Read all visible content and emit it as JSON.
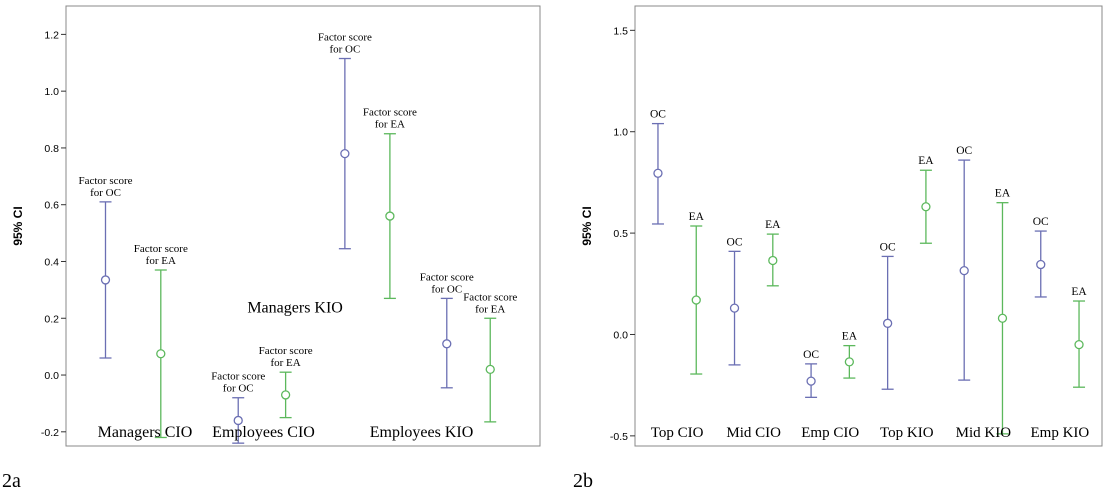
{
  "panel_labels": {
    "a": "2a",
    "b": "2b"
  },
  "chart_data": [
    {
      "type": "errorbar",
      "panel": "2a",
      "ylabel": "95% CI",
      "ylim": [
        -0.25,
        1.3
      ],
      "yticks": [
        -0.2,
        0.0,
        0.2,
        0.4,
        0.6,
        0.8,
        1.0,
        1.2
      ],
      "ytick_labels": [
        "-0.2",
        "0.0",
        "0.2",
        "0.4",
        "0.6",
        "0.8",
        "1.0",
        "1.2"
      ],
      "xmax": 6,
      "colors": {
        "OC": "#6b6fb3",
        "EA": "#5cb85c"
      },
      "groups": [
        {
          "label": "Managers CIO",
          "label_x": 1.5
        },
        {
          "label": "Employees CIO",
          "label_x": 3.0
        },
        {
          "label": "Managers KIO",
          "label_x": 3.4,
          "label_y": 0.22
        },
        {
          "label": "Employees KIO",
          "label_x": 5.0
        }
      ],
      "points": [
        {
          "series": "OC",
          "x": 1,
          "mean": 0.335,
          "low": 0.06,
          "high": 0.61,
          "annot": [
            "Factor score",
            "for OC"
          ]
        },
        {
          "series": "EA",
          "x": 1.7,
          "mean": 0.075,
          "low": -0.22,
          "high": 0.37,
          "annot": [
            "Factor score",
            "for EA"
          ]
        },
        {
          "series": "OC",
          "x": 2.68,
          "mean": -0.16,
          "low": -0.24,
          "high": -0.08,
          "annot": [
            "Factor score",
            "for OC"
          ]
        },
        {
          "series": "EA",
          "x": 3.28,
          "mean": -0.07,
          "low": -0.15,
          "high": 0.01,
          "annot": [
            "Factor score",
            "for EA"
          ]
        },
        {
          "series": "OC",
          "x": 4.03,
          "mean": 0.78,
          "low": 0.445,
          "high": 1.115,
          "annot": [
            "Factor score",
            "for OC"
          ]
        },
        {
          "series": "EA",
          "x": 4.6,
          "mean": 0.56,
          "low": 0.27,
          "high": 0.85,
          "annot": [
            "Factor score",
            "for EA"
          ]
        },
        {
          "series": "OC",
          "x": 5.32,
          "mean": 0.11,
          "low": -0.045,
          "high": 0.27,
          "annot": [
            "Factor score",
            "for OC"
          ]
        },
        {
          "series": "EA",
          "x": 5.87,
          "mean": 0.02,
          "low": -0.165,
          "high": 0.2,
          "annot": [
            "Factor score",
            "for EA"
          ]
        }
      ]
    },
    {
      "type": "errorbar",
      "panel": "2b",
      "ylabel": "95% CI",
      "ylim": [
        -0.55,
        1.62
      ],
      "yticks": [
        -0.5,
        0.0,
        0.5,
        1.0,
        1.5
      ],
      "ytick_labels": [
        "-0.5",
        "0.0",
        "0.5",
        "1.0",
        "1.5"
      ],
      "xmax": 12,
      "colors": {
        "OC": "#6b6fb3",
        "EA": "#5cb85c"
      },
      "groups": [
        {
          "label": "Top CIO",
          "label_x": 1.5
        },
        {
          "label": "Mid CIO",
          "label_x": 3.5
        },
        {
          "label": "Emp CIO",
          "label_x": 5.5
        },
        {
          "label": "Top KIO",
          "label_x": 7.5
        },
        {
          "label": "Mid KIO",
          "label_x": 9.5
        },
        {
          "label": "Emp KIO",
          "label_x": 11.5
        }
      ],
      "points": [
        {
          "series": "OC",
          "x": 1,
          "mean": 0.795,
          "low": 0.545,
          "high": 1.04,
          "annot": [
            "OC"
          ]
        },
        {
          "series": "EA",
          "x": 2,
          "mean": 0.17,
          "low": -0.195,
          "high": 0.535,
          "annot": [
            "EA"
          ]
        },
        {
          "series": "OC",
          "x": 3,
          "mean": 0.13,
          "low": -0.15,
          "high": 0.41,
          "annot": [
            "OC"
          ]
        },
        {
          "series": "EA",
          "x": 4,
          "mean": 0.365,
          "low": 0.24,
          "high": 0.495,
          "annot": [
            "EA"
          ]
        },
        {
          "series": "OC",
          "x": 5,
          "mean": -0.23,
          "low": -0.31,
          "high": -0.145,
          "annot": [
            "OC"
          ]
        },
        {
          "series": "EA",
          "x": 6,
          "mean": -0.135,
          "low": -0.215,
          "high": -0.055,
          "annot": [
            "EA"
          ]
        },
        {
          "series": "OC",
          "x": 7,
          "mean": 0.055,
          "low": -0.27,
          "high": 0.385,
          "annot": [
            "OC"
          ]
        },
        {
          "series": "EA",
          "x": 8,
          "mean": 0.63,
          "low": 0.45,
          "high": 0.81,
          "annot": [
            "EA"
          ]
        },
        {
          "series": "OC",
          "x": 9,
          "mean": 0.315,
          "low": -0.225,
          "high": 0.86,
          "annot": [
            "OC"
          ]
        },
        {
          "series": "EA",
          "x": 10,
          "mean": 0.08,
          "low": -0.49,
          "high": 0.65,
          "annot": [
            "EA"
          ]
        },
        {
          "series": "OC",
          "x": 11,
          "mean": 0.345,
          "low": 0.185,
          "high": 0.51,
          "annot": [
            "OC"
          ]
        },
        {
          "series": "EA",
          "x": 12,
          "mean": -0.05,
          "low": -0.26,
          "high": 0.165,
          "annot": [
            "EA"
          ]
        }
      ]
    }
  ]
}
